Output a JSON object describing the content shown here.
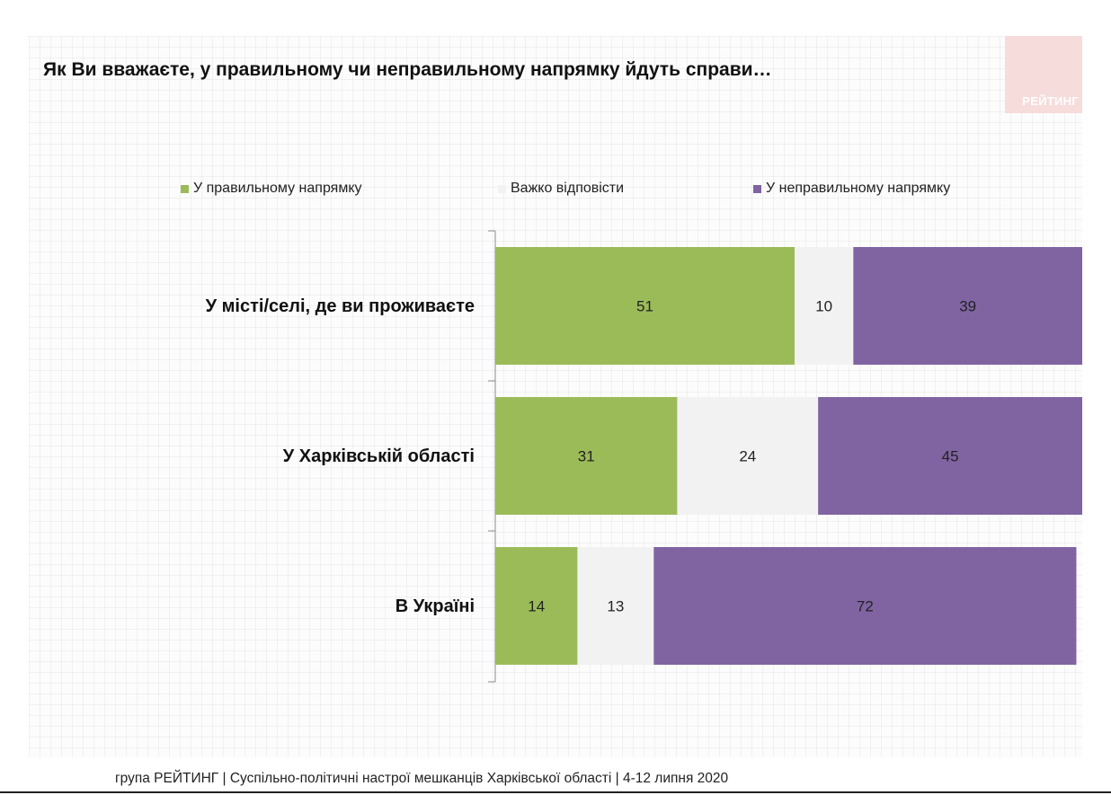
{
  "title": "Як Ви вважаєте, у правильному чи неправильному напрямку йдуть справи…",
  "logo_text": "РЕЙТИНГ",
  "footer": "група РЕЙТИНГ  | Суспільно-політичні настрої мешканців Харківської області | 4-12 липня 2020",
  "chart_data": {
    "type": "bar",
    "orientation": "horizontal",
    "stacked": true,
    "categories": [
      "У місті/селі, де ви проживаєте",
      "У Харківській області",
      "В Україні"
    ],
    "series": [
      {
        "name": "У правильному напрямку",
        "color": "#9bbb59",
        "values": [
          51,
          31,
          14
        ]
      },
      {
        "name": "Важко відповісти",
        "color": "#f2f2f2",
        "values": [
          10,
          24,
          13
        ]
      },
      {
        "name": "У неправильному напрямку",
        "color": "#8064a2",
        "values": [
          39,
          45,
          72
        ]
      }
    ],
    "legend_position": "top",
    "data_labels": true,
    "xlim": [
      0,
      100
    ]
  }
}
